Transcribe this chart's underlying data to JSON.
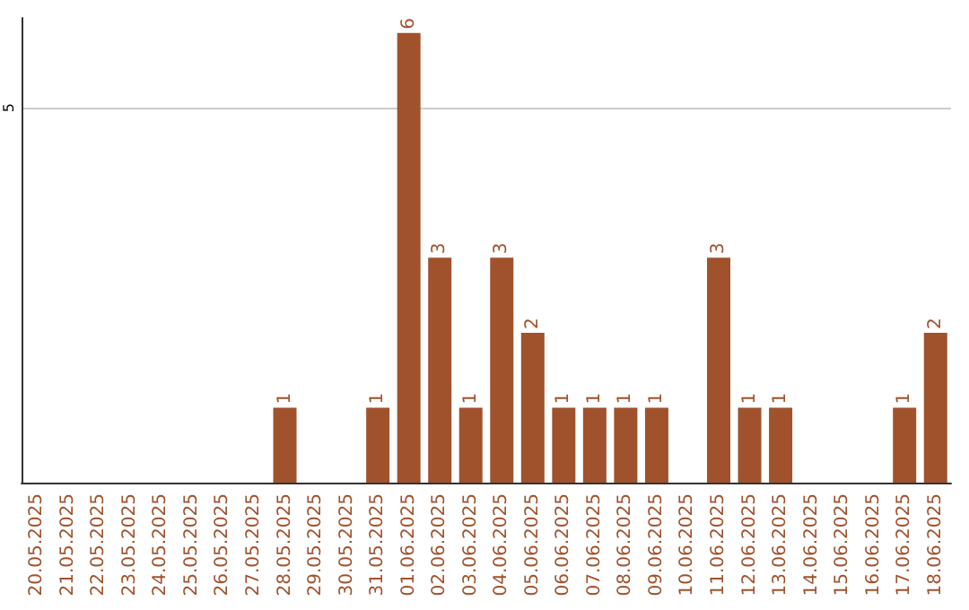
{
  "chart_data": {
    "type": "bar",
    "categories": [
      "20.05.2025",
      "21.05.2025",
      "22.05.2025",
      "23.05.2025",
      "24.05.2025",
      "25.05.2025",
      "26.05.2025",
      "27.05.2025",
      "28.05.2025",
      "29.05.2025",
      "30.05.2025",
      "31.05.2025",
      "01.06.2025",
      "02.06.2025",
      "03.06.2025",
      "04.06.2025",
      "05.06.2025",
      "06.06.2025",
      "07.06.2025",
      "08.06.2025",
      "09.06.2025",
      "10.06.2025",
      "11.06.2025",
      "12.06.2025",
      "13.06.2025",
      "14.06.2025",
      "15.06.2025",
      "16.06.2025",
      "17.06.2025",
      "18.06.2025"
    ],
    "values": [
      0,
      0,
      0,
      0,
      0,
      0,
      0,
      0,
      1,
      0,
      0,
      1,
      6,
      3,
      1,
      3,
      2,
      1,
      1,
      1,
      1,
      0,
      3,
      1,
      1,
      0,
      0,
      0,
      1,
      2
    ],
    "value_labels": [
      null,
      null,
      null,
      null,
      null,
      null,
      null,
      null,
      "1",
      null,
      null,
      "1",
      "6",
      "3",
      "1",
      "3",
      "2",
      "1",
      "1",
      "1",
      "1",
      null,
      "3",
      "1",
      "1",
      null,
      null,
      null,
      "1",
      "2"
    ],
    "color": "#a0522d",
    "ylim": [
      0,
      6.2
    ],
    "yticks": [
      5
    ],
    "grid": "y"
  }
}
